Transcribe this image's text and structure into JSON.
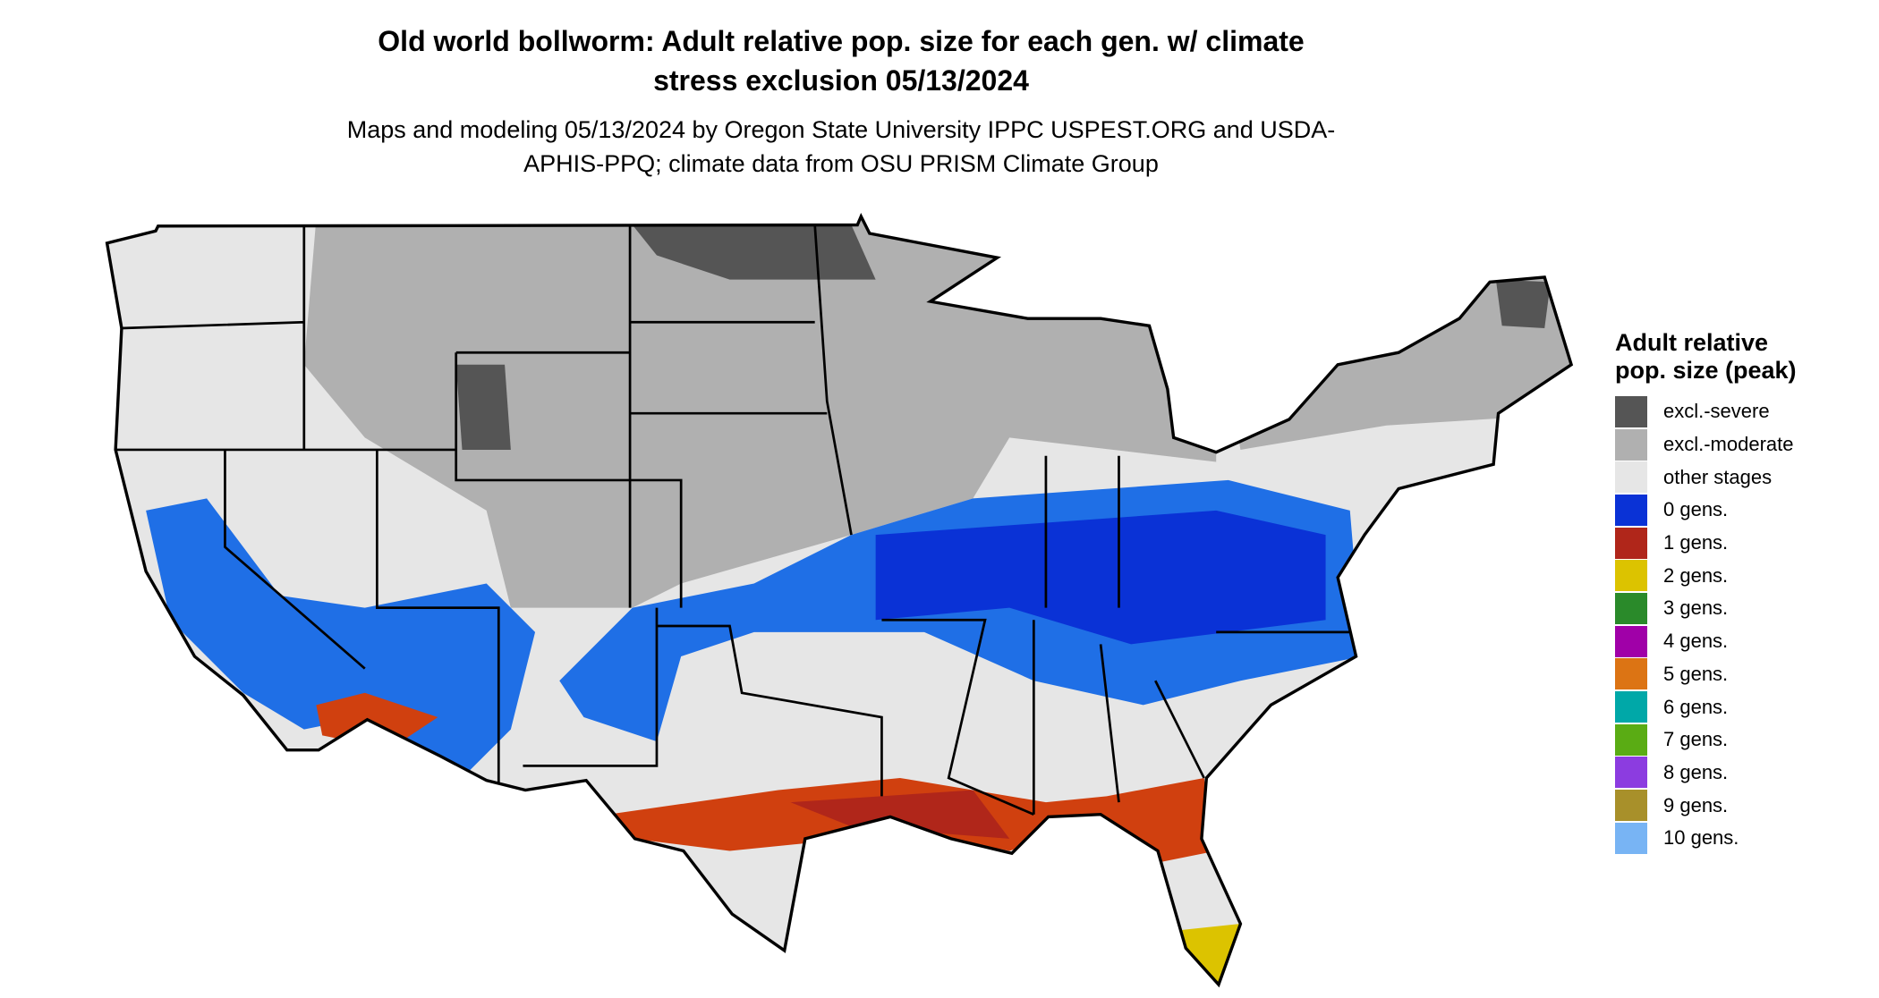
{
  "title": "Old world bollworm: Adult relative pop. size for each gen. w/ climate stress exclusion 05/13/2024",
  "subtitle": "Maps and modeling 05/13/2024 by Oregon State University IPPC USPEST.ORG and USDA-APHIS-PPQ; climate data from OSU PRISM Climate Group",
  "legend": {
    "title": "Adult relative pop. size (peak)",
    "items": [
      {
        "label": "excl.-severe",
        "color": "#555555"
      },
      {
        "label": "excl.-moderate",
        "color": "#b0b0b0"
      },
      {
        "label": "other stages",
        "color": "#e6e6e6"
      },
      {
        "label": "0 gens.",
        "color": "#0a32d6"
      },
      {
        "label": "1 gens.",
        "color": "#b0261a"
      },
      {
        "label": "2 gens.",
        "color": "#dcc300"
      },
      {
        "label": "3 gens.",
        "color": "#2a8a2a"
      },
      {
        "label": "4 gens.",
        "color": "#a000a8"
      },
      {
        "label": "5 gens.",
        "color": "#dc7414"
      },
      {
        "label": "6 gens.",
        "color": "#00a8a8"
      },
      {
        "label": "7 gens.",
        "color": "#5aac14"
      },
      {
        "label": "8 gens.",
        "color": "#8c3ce0"
      },
      {
        "label": "9 gens.",
        "color": "#a8902a"
      },
      {
        "label": "10 gens.",
        "color": "#78b4f4"
      }
    ]
  }
}
